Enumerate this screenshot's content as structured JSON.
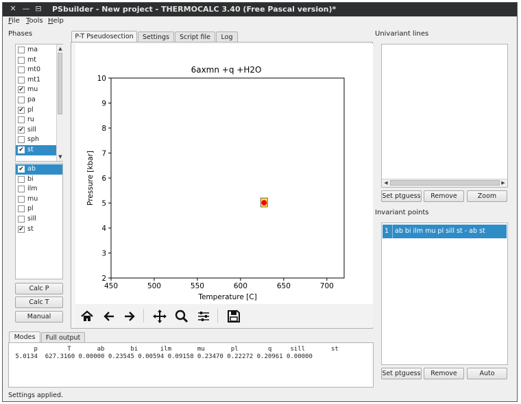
{
  "window": {
    "title": "PSbuilder - New project - THERMOCALC 3.40 (Free Pascal version)*",
    "close_glyph": "✕",
    "minimize_glyph": "—",
    "restore_glyph": "⊟"
  },
  "menu": [
    {
      "label": "File",
      "hotkey": "F",
      "rest": "ile"
    },
    {
      "label": "Tools",
      "hotkey": "T",
      "rest": "ools"
    },
    {
      "label": "Help",
      "hotkey": "H",
      "rest": "elp"
    }
  ],
  "phases": {
    "group_label": "Phases",
    "list1": [
      {
        "name": "ma",
        "checked": false
      },
      {
        "name": "mt",
        "checked": false
      },
      {
        "name": "mt0",
        "checked": false
      },
      {
        "name": "mt1",
        "checked": false
      },
      {
        "name": "mu",
        "checked": true
      },
      {
        "name": "pa",
        "checked": false
      },
      {
        "name": "pl",
        "checked": true
      },
      {
        "name": "ru",
        "checked": false
      },
      {
        "name": "sill",
        "checked": true
      },
      {
        "name": "sph",
        "checked": false
      },
      {
        "name": "st",
        "checked": true,
        "selected": true
      }
    ],
    "list2": [
      {
        "name": "ab",
        "checked": true,
        "selected": true
      },
      {
        "name": "bi",
        "checked": false
      },
      {
        "name": "ilm",
        "checked": false
      },
      {
        "name": "mu",
        "checked": false
      },
      {
        "name": "pl",
        "checked": false
      },
      {
        "name": "sill",
        "checked": false
      },
      {
        "name": "st",
        "checked": true
      }
    ],
    "buttons": {
      "calc_p": "Calc P",
      "calc_t": "Calc T",
      "manual": "Manual"
    }
  },
  "tabs": [
    "P-T Pseudosection",
    "Settings",
    "Script file",
    "Log"
  ],
  "chart_data": {
    "type": "scatter",
    "title": "6axmn +q +H2O",
    "xlabel": "Temperature [C]",
    "ylabel": "Pressure [kbar]",
    "xlim": [
      450,
      720
    ],
    "ylim": [
      2,
      10
    ],
    "xticks": [
      450,
      500,
      550,
      600,
      650,
      700
    ],
    "yticks": [
      2,
      3,
      4,
      5,
      6,
      7,
      8,
      9,
      10
    ],
    "points": [
      {
        "x": 627.3,
        "y": 5.01,
        "color": "#ff0000",
        "highlight_box": "#ffe24a"
      }
    ],
    "grid": false
  },
  "output_tabs": [
    "Modes",
    "Full output"
  ],
  "modes": {
    "header": "      p        T       ab       bi      ilm       mu       pl        q     sill       st",
    "values": " 5.0134  627.3160 0.00000 0.23545 0.00594 0.09158 0.23470 0.22272 0.20961 0.00000"
  },
  "univariant": {
    "group_label": "Univariant lines",
    "buttons": {
      "set_ptguess": "Set ptguess",
      "remove": "Remove",
      "zoom": "Zoom"
    }
  },
  "invariant": {
    "group_label": "Invariant points",
    "items": [
      {
        "id": "1",
        "label": "ab bi ilm mu pl sill st - ab st"
      }
    ],
    "buttons": {
      "set_ptguess": "Set ptguess",
      "remove": "Remove",
      "auto": "Auto"
    }
  },
  "status": "Settings applied.",
  "colors": {
    "selection": "#308cc6",
    "titlebar": "#2e2f30",
    "point": "#ff0000"
  }
}
